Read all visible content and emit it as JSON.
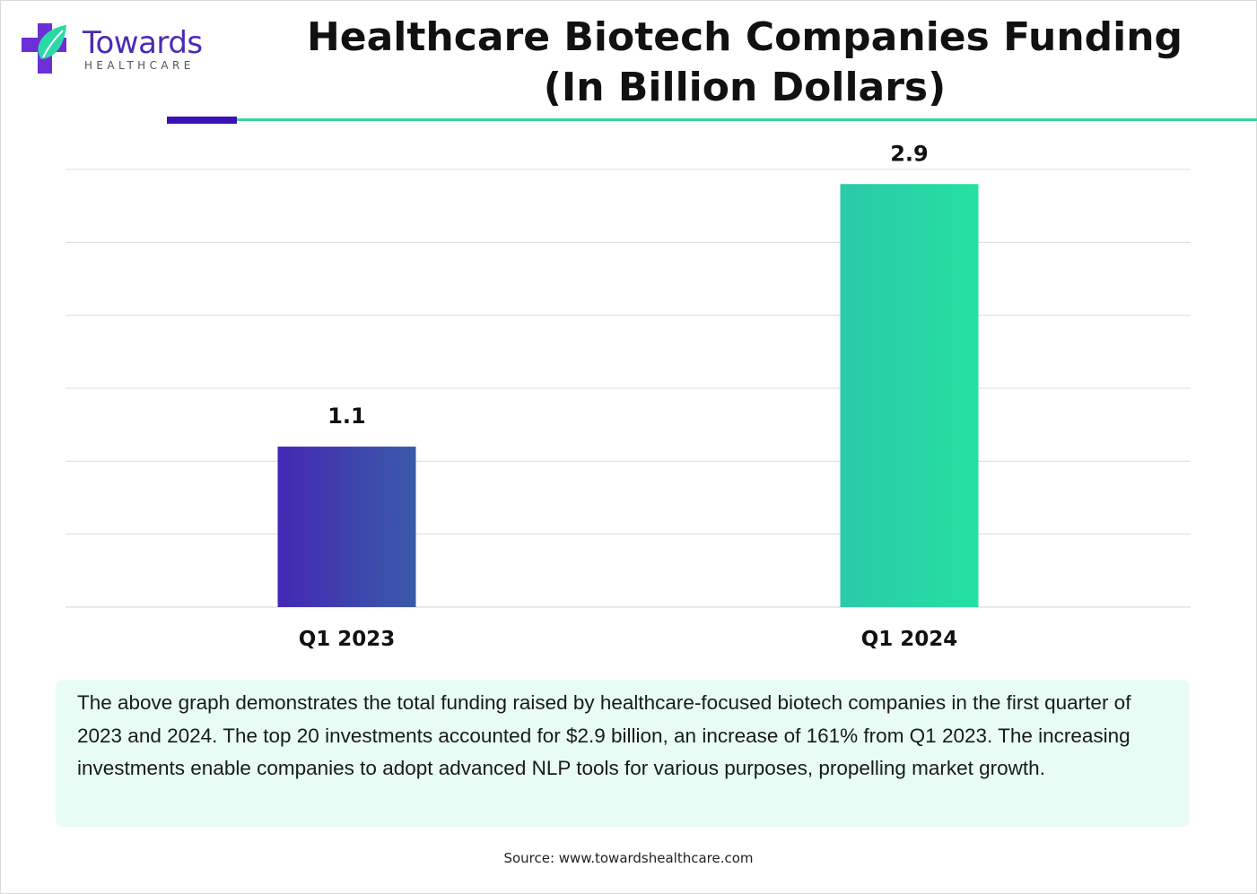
{
  "brand": {
    "name": "Towards",
    "subtitle": "HEALTHCARE",
    "colors": {
      "purple": "#4a2bb5",
      "teal": "#2bd9a6",
      "purple_rule": "#3a13b8",
      "teal_rule": "#37d3a0"
    }
  },
  "chart_data": {
    "type": "bar",
    "title": "Healthcare Biotech Companies Funding (In Billion Dollars)",
    "title_lines": [
      "Healthcare Biotech Companies Funding",
      "(In Billion Dollars)"
    ],
    "categories": [
      "Q1 2023",
      "Q1 2024"
    ],
    "values": [
      1.1,
      2.9
    ],
    "data_labels": [
      "1.1",
      "2.9"
    ],
    "bar_colors": [
      [
        "#4328b3",
        "#3a5aa8"
      ],
      [
        "#2bc9a8",
        "#24e0a2"
      ]
    ],
    "ylim": [
      0,
      3.0
    ],
    "grid": true,
    "xlabel": "",
    "ylabel": ""
  },
  "note": {
    "text": "The above graph demonstrates the total funding raised by healthcare-focused biotech companies in the first quarter of 2023 and 2024. The top 20 investments accounted for $2.9 billion, an increase of 161% from Q1 2023. The increasing investments enable companies to adopt advanced NLP tools for various purposes, propelling market growth.",
    "background": "#e8fcf5"
  },
  "source": "Source: www.towardshealthcare.com"
}
